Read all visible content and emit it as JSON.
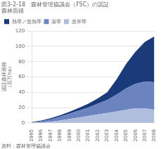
{
  "chart_data": {
    "type": "area",
    "stacked": true,
    "title": [
      "図3-2-18　森林管理協議会（FSC）の認証",
      "森林面積"
    ],
    "ylabel": "認証森林面積",
    "yunits": "（百万ha）",
    "source": "資料：森林管理協議会",
    "x": [
      1995,
      1996,
      1997,
      1998,
      1999,
      2000,
      2001,
      2002,
      2003,
      2004,
      2005,
      2006,
      2007,
      2008
    ],
    "xlim": [
      1995,
      2008
    ],
    "xticks": [
      1995,
      1996,
      1997,
      1998,
      1999,
      2000,
      2001,
      2002,
      2003,
      2004,
      2005,
      2006,
      2007,
      2008
    ],
    "series": [
      {
        "name": "亜寒帯",
        "color": "#b0bedd",
        "values": [
          0.2,
          0.5,
          1.5,
          3.0,
          5.0,
          7.0,
          9.0,
          11.0,
          13.0,
          15.0,
          17.0,
          19.0,
          19.0,
          17.0
        ]
      },
      {
        "name": "温帯",
        "color": "#6b84c0",
        "values": [
          0.5,
          1.5,
          3.0,
          5.0,
          7.0,
          9.0,
          11.0,
          14.0,
          17.0,
          22.0,
          28.0,
          32.0,
          35.0,
          36.0
        ]
      },
      {
        "name": "熱帯／亜熱帯",
        "color": "#1a3a7a",
        "values": [
          0.5,
          1.0,
          1.5,
          2.0,
          2.5,
          3.5,
          5.0,
          7.0,
          10.0,
          20.0,
          32.0,
          42.0,
          52.0,
          60.0
        ]
      }
    ],
    "ylim": [
      0,
      120
    ],
    "yticks": [
      0,
      20,
      40,
      60,
      80,
      100,
      120
    ],
    "grid": true,
    "legend": "upper left"
  }
}
